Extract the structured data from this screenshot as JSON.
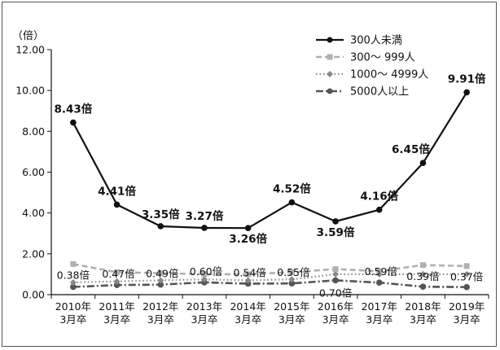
{
  "chart_data": {
    "type": "line",
    "unit_label": "（倍）",
    "categories": [
      [
        "2010年",
        "3月卒"
      ],
      [
        "2011年",
        "3月卒"
      ],
      [
        "2012年",
        "3月卒"
      ],
      [
        "2013年",
        "3月卒"
      ],
      [
        "2014年",
        "3月卒"
      ],
      [
        "2015年",
        "3月卒"
      ],
      [
        "2016年",
        "3月卒"
      ],
      [
        "2017年",
        "3月卒"
      ],
      [
        "2018年",
        "3月卒"
      ],
      [
        "2019年",
        "3月卒"
      ]
    ],
    "ylim": [
      0,
      12
    ],
    "yticks": [
      "0.00",
      "2.00",
      "4.00",
      "6.00",
      "8.00",
      "10.00",
      "12.00"
    ],
    "grid": false,
    "legend_position": "top-right",
    "series": [
      {
        "name": "300人未満",
        "color": "#111111",
        "line_style": "solid",
        "marker": "circle",
        "values": [
          8.43,
          4.41,
          3.35,
          3.27,
          3.26,
          4.52,
          3.59,
          4.16,
          6.45,
          9.91
        ],
        "labels": [
          "8.43倍",
          "4.41倍",
          "3.35倍",
          "3.27倍",
          "3.26倍",
          "4.52倍",
          "3.59倍",
          "4.16倍",
          "6.45倍",
          "9.91倍"
        ]
      },
      {
        "name": "300～ 999人",
        "color": "#b0b0b0",
        "line_style": "dashed",
        "marker": "square",
        "values": [
          1.5,
          1.1,
          1.05,
          1.0,
          1.0,
          1.1,
          1.25,
          1.15,
          1.45,
          1.4
        ],
        "labels": []
      },
      {
        "name": "1000～ 4999人",
        "color": "#888888",
        "line_style": "dotted",
        "marker": "diamond",
        "values": [
          0.6,
          0.65,
          0.7,
          0.75,
          0.7,
          0.75,
          1.0,
          1.0,
          1.0,
          1.0
        ],
        "labels": []
      },
      {
        "name": "5000人以上",
        "color": "#555555",
        "line_style": "dashdot",
        "marker": "circle",
        "values": [
          0.38,
          0.47,
          0.49,
          0.6,
          0.54,
          0.55,
          0.7,
          0.59,
          0.39,
          0.37
        ],
        "labels": [
          "0.38倍",
          "0.47倍",
          "0.49倍",
          "0.60倍",
          "0.54倍",
          "0.55倍",
          "0.70倍",
          "0.59倍",
          "0.39倍",
          "0.37倍"
        ]
      }
    ]
  }
}
